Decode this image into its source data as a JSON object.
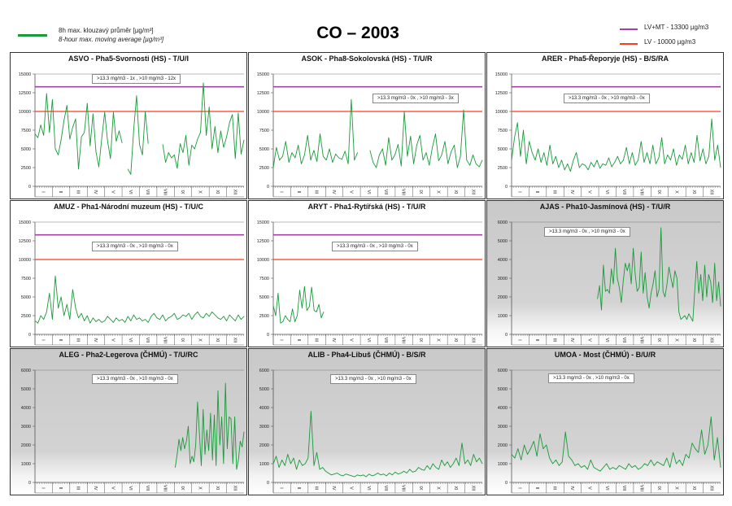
{
  "header": {
    "title": "CO – 2003",
    "legend_series_cz": "8h max. klouzavý průměr [µg/m³]",
    "legend_series_en": "8-hour max. moving average [µg/m³]",
    "legend_lvmt": "LV+MT  - 13300 µg/m3",
    "legend_lv": "LV   - 10000 µg/m3"
  },
  "colors": {
    "series": "#1a9a3a",
    "lvmt": "#a53fa5",
    "lv": "#ff3b1f"
  },
  "chart_data": [
    {
      "type": "line",
      "title": "ASVO - Pha5-Svornosti (HS) - T/U/I",
      "note": ">13.3 mg/m3 - 1x  ,  >10 mg/m3 - 12x",
      "ylim": [
        0,
        15000
      ],
      "yticks": [
        0,
        2500,
        5000,
        7500,
        10000,
        12500,
        15000
      ],
      "limits": [
        13300,
        10000
      ],
      "xlabels": [
        "I",
        "II",
        "III",
        "IV",
        "V",
        "VI",
        "VII",
        "VIII",
        "IX",
        "X",
        "XI",
        "XII"
      ],
      "start_day": 0,
      "end_day": 365,
      "values": [
        7000,
        6500,
        8200,
        6800,
        12400,
        7200,
        11600,
        5000,
        4200,
        6200,
        8800,
        10800,
        6300,
        7900,
        9000,
        2300,
        6600,
        7200,
        11100,
        5400,
        9700,
        4600,
        2600,
        6400,
        9900,
        6100,
        3700,
        9900,
        6000,
        7400,
        5800,
        null,
        2300,
        1600,
        7600,
        12100,
        5600,
        4200,
        10000,
        5700,
        null,
        null,
        null,
        null,
        5600,
        3200,
        4500,
        3800,
        4200,
        2400,
        5700,
        4500,
        6800,
        2800,
        5500,
        5000,
        6300,
        7200,
        13800,
        6800,
        10600,
        5000,
        8000,
        4500,
        7400,
        5200,
        6600,
        8500,
        9600,
        3700,
        9800,
        4300,
        6200
      ]
    },
    {
      "type": "line",
      "title": "ASOK - Pha8-Sokolovská (HS) - T/U/R",
      "note": ">13.3 mg/m3 - 0x  ,  >10 mg/m3 - 3x",
      "ylim": [
        0,
        15000
      ],
      "yticks": [
        0,
        2500,
        5000,
        7500,
        10000,
        12500,
        15000
      ],
      "limits": [
        13300,
        10000
      ],
      "xlabels": [
        "I",
        "II",
        "III",
        "IV",
        "V",
        "VI",
        "VII",
        "VIII",
        "IX",
        "X",
        "XI",
        "XII"
      ],
      "start_day": 0,
      "end_day": 365,
      "values": [
        2500,
        5200,
        3500,
        4000,
        6000,
        3200,
        4500,
        3800,
        5500,
        3000,
        4200,
        6800,
        3500,
        4800,
        3300,
        7000,
        4000,
        3500,
        5000,
        3200,
        4300,
        3800,
        3600,
        4700,
        3000,
        11600,
        3500,
        4500,
        null,
        null,
        null,
        4800,
        3200,
        2500,
        4200,
        5000,
        2800,
        6500,
        3500,
        4200,
        5600,
        2700,
        10000,
        4000,
        6700,
        3000,
        5500,
        6800,
        3500,
        4500,
        2800,
        5200,
        7000,
        3400,
        4200,
        6000,
        3000,
        4600,
        5500,
        2500,
        4000,
        10200,
        3500,
        2800,
        4200,
        3000,
        2600,
        3500
      ]
    },
    {
      "type": "line",
      "title": "ARER - Pha5-Řeporyje (HS) - B/S/RA",
      "note": ">13.3 mg/m3 - 0x  ,  >10 mg/m3 - 0x",
      "ylim": [
        0,
        15000
      ],
      "yticks": [
        0,
        2500,
        5000,
        7500,
        10000,
        12500,
        15000
      ],
      "limits": [
        13300,
        10000
      ],
      "xlabels": [
        "I",
        "II",
        "III",
        "IV",
        "V",
        "VI",
        "VII",
        "VIII",
        "IX",
        "X",
        "XI",
        "XII"
      ],
      "start_day": 0,
      "end_day": 365,
      "values": [
        3500,
        6500,
        8500,
        4000,
        7500,
        3000,
        6000,
        4500,
        3500,
        5000,
        3200,
        4500,
        2800,
        5500,
        3000,
        4000,
        2500,
        3500,
        2200,
        3000,
        2000,
        3500,
        4500,
        2500,
        3000,
        2800,
        2200,
        3200,
        2600,
        3500,
        2400,
        3000,
        2800,
        3800,
        2600,
        3200,
        4000,
        3000,
        3500,
        5200,
        3000,
        4500,
        2800,
        3500,
        6000,
        3200,
        4500,
        3000,
        5500,
        3000,
        3800,
        6500,
        3000,
        4200,
        3500,
        5000,
        2800,
        4200,
        3600,
        5500,
        3000,
        4500,
        3200,
        6800,
        3400,
        5000,
        3000,
        4000,
        9000,
        3500,
        5500,
        2500
      ]
    },
    {
      "type": "line",
      "title": "AMUZ - Pha1-Národní muzeum (HS) - T/U/C",
      "note": ">13.3 mg/m3 - 0x  ,  >10 mg/m3 - 0x",
      "ylim": [
        0,
        15000
      ],
      "yticks": [
        0,
        2500,
        5000,
        7500,
        10000,
        12500,
        15000
      ],
      "limits": [
        13300,
        10000
      ],
      "xlabels": [
        "I",
        "II",
        "III",
        "IV",
        "V",
        "VI",
        "VII",
        "VIII",
        "IX",
        "X",
        "XI",
        "XII"
      ],
      "start_day": 0,
      "end_day": 365,
      "values": [
        1800,
        1500,
        2500,
        2000,
        3000,
        5500,
        2000,
        7800,
        3500,
        5000,
        2500,
        4000,
        2000,
        6000,
        3500,
        2200,
        2800,
        1800,
        2500,
        1500,
        2200,
        1700,
        2000,
        1600,
        1800,
        2400,
        2000,
        1600,
        2200,
        1800,
        2000,
        1600,
        2400,
        1800,
        2600,
        2000,
        2200,
        1800,
        2000,
        1600,
        2400,
        2800,
        2200,
        2000,
        2600,
        1800,
        2200,
        2400,
        2800,
        2000,
        2200,
        2600,
        2400,
        2800,
        2000,
        2600,
        3000,
        2400,
        2200,
        2800,
        2400,
        3000,
        2600,
        2200,
        2000,
        2400,
        1800,
        2600,
        2200,
        1800,
        2600,
        2000,
        2400
      ]
    },
    {
      "type": "line",
      "title": "ARYT - Pha1-Rytířská (HS) - T/U/R",
      "note": ">13.3 mg/m3 - 0x  ,  >10 mg/m3 - 0x",
      "ylim": [
        0,
        15000
      ],
      "yticks": [
        0,
        2500,
        5000,
        7500,
        10000,
        12500,
        15000
      ],
      "limits": [
        13300,
        10000
      ],
      "xlabels": [
        "I",
        "II",
        "III",
        "IV",
        "V",
        "VI",
        "VII",
        "VIII",
        "IX",
        "X",
        "XI",
        "XII"
      ],
      "start_day": 0,
      "end_day": 88,
      "values": [
        3800,
        2500,
        5500,
        1500,
        1700,
        2500,
        2000,
        1700,
        3400,
        1700,
        2500,
        5900,
        3500,
        6400,
        3200,
        3700,
        6300,
        3200,
        3000,
        4000,
        2200,
        3000
      ]
    },
    {
      "type": "line",
      "title": "AJAS - Pha10-Jasmínová (HS) - T/U/R",
      "note": ">13.3 mg/m3 - 0x  ,  >10 mg/m3 - 0x",
      "ylim": [
        0,
        6000
      ],
      "yticks": [
        0,
        1000,
        2000,
        3000,
        4000,
        5000,
        6000
      ],
      "limits": [],
      "xlabels": [
        "I",
        "II",
        "III",
        "IV",
        "V",
        "VI",
        "VII",
        "VIII",
        "IX",
        "X",
        "XI",
        "XII"
      ],
      "start_day": 150,
      "end_day": 365,
      "values": [
        1900,
        2600,
        1300,
        3700,
        2300,
        2400,
        2200,
        3500,
        2700,
        4600,
        3000,
        2500,
        1700,
        2900,
        3800,
        3400,
        3800,
        2700,
        4600,
        3200,
        2300,
        2500,
        4400,
        2200,
        3300,
        2000,
        1400,
        2200,
        2700,
        3400,
        2000,
        2400,
        5700,
        2300,
        2000,
        2700,
        3600,
        3000,
        2500,
        3400,
        3000,
        1200,
        800,
        900,
        1000,
        800,
        1100,
        900,
        700,
        2400,
        3900,
        2200,
        3200,
        1800,
        3700,
        2000,
        3200,
        2800,
        1700,
        3800,
        1800,
        2800,
        1500
      ]
    },
    {
      "type": "line",
      "title": "ALEG - Pha2-Legerova (ČHMÚ) - T/U/RC",
      "note": ">13.3 mg/m3 - 0x  ,  >10 mg/m3 - 0x",
      "ylim": [
        0,
        6000
      ],
      "yticks": [
        0,
        1000,
        2000,
        3000,
        4000,
        5000,
        6000
      ],
      "limits": [],
      "xlabels": [
        "I",
        "II",
        "III",
        "IV",
        "V",
        "VI",
        "VII",
        "VIII",
        "IX",
        "X",
        "XI",
        "XII"
      ],
      "start_day": 245,
      "end_day": 365,
      "values": [
        800,
        1500,
        2300,
        1700,
        2400,
        1800,
        2200,
        3000,
        1000,
        1400,
        1100,
        2000,
        4300,
        2600,
        900,
        3900,
        1500,
        2800,
        1700,
        3700,
        1200,
        3600,
        900,
        4900,
        2000,
        3500,
        1000,
        5300,
        1800,
        3500,
        3400,
        1000,
        3500,
        700,
        1200,
        2200,
        1900,
        2700
      ]
    },
    {
      "type": "line",
      "title": "ALIB - Pha4-Libuš (ČHMÚ) - B/S/R",
      "note": ">13.3 mg/m3 - 0x  ,  >10 mg/m3 - 0x",
      "ylim": [
        0,
        6000
      ],
      "yticks": [
        0,
        1000,
        2000,
        3000,
        4000,
        5000,
        6000
      ],
      "limits": [],
      "xlabels": [
        "I",
        "II",
        "III",
        "IV",
        "V",
        "VI",
        "VII",
        "VIII",
        "IX",
        "X",
        "XI",
        "XII"
      ],
      "start_day": 0,
      "end_day": 365,
      "values": [
        1000,
        1400,
        800,
        1200,
        900,
        1500,
        1000,
        1300,
        700,
        1200,
        900,
        1000,
        1300,
        3800,
        900,
        1600,
        700,
        800,
        600,
        500,
        400,
        450,
        500,
        400,
        350,
        450,
        400,
        350,
        300,
        400,
        350,
        400,
        300,
        450,
        350,
        400,
        500,
        400,
        450,
        350,
        500,
        400,
        550,
        450,
        500,
        600,
        500,
        700,
        550,
        600,
        800,
        700,
        650,
        900,
        700,
        1000,
        800,
        700,
        1200,
        900,
        1100,
        800,
        1000,
        1300,
        900,
        2100,
        1000,
        1200,
        900,
        1500,
        1100,
        1300,
        1000
      ]
    },
    {
      "type": "line",
      "title": "UMOA - Most (ČHMÚ) - B/U/R",
      "note": ">13.3 mg/m3 - 0x  ,  >10 mg/m3 - 0x",
      "ylim": [
        0,
        6000
      ],
      "yticks": [
        0,
        1000,
        2000,
        3000,
        4000,
        5000,
        6000
      ],
      "limits": [],
      "xlabels": [
        "I",
        "II",
        "III",
        "IV",
        "V",
        "VI",
        "VII",
        "VIII",
        "IX",
        "X",
        "XI",
        "XII"
      ],
      "start_day": 0,
      "end_day": 365,
      "values": [
        1500,
        1300,
        1800,
        1200,
        2000,
        1500,
        1800,
        2200,
        1400,
        2600,
        1800,
        2000,
        1300,
        1000,
        1200,
        900,
        1100,
        2700,
        1400,
        1200,
        900,
        1000,
        800,
        900,
        700,
        1200,
        800,
        700,
        600,
        800,
        1000,
        700,
        800,
        700,
        900,
        800,
        700,
        1000,
        800,
        900,
        700,
        800,
        1000,
        900,
        1200,
        900,
        1100,
        1000,
        900,
        1300,
        800,
        1600,
        1000,
        1200,
        900,
        1500,
        1300,
        2100,
        1800,
        1600,
        2800,
        1500,
        2000,
        3500,
        1200,
        2400,
        800
      ]
    }
  ]
}
